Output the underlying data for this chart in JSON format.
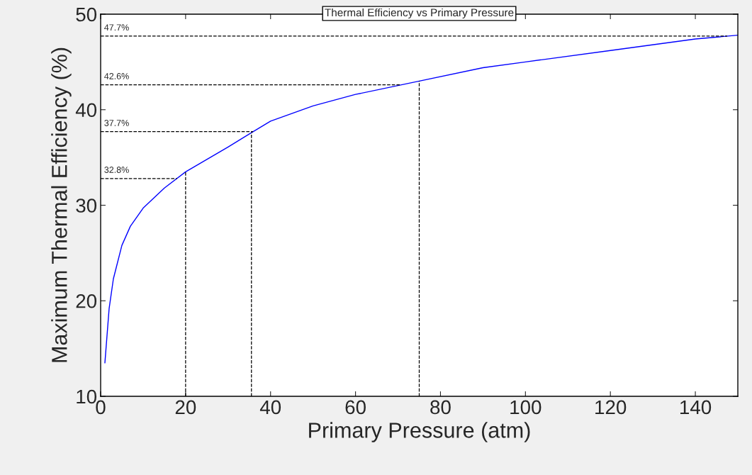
{
  "chart_data": {
    "type": "line",
    "title": "Thermal Efficiency vs Primary Pressure",
    "xlabel": "Primary Pressure (atm)",
    "ylabel": "Maximum Thermal Efficiency (%)",
    "x": [
      1,
      2,
      3,
      5,
      7,
      10,
      15,
      20,
      30,
      35.5,
      40,
      50,
      60,
      75,
      90,
      100,
      120,
      140,
      150
    ],
    "series": [
      {
        "color": "#0000ff",
        "values": [
          13.5,
          19.2,
          22.3,
          25.8,
          27.8,
          29.7,
          31.8,
          33.5,
          36.1,
          37.6,
          38.8,
          40.4,
          41.6,
          43.0,
          44.4,
          45.0,
          46.2,
          47.4,
          47.8
        ]
      }
    ],
    "xlim": [
      0,
      150
    ],
    "xticks": [
      0,
      20,
      40,
      60,
      80,
      100,
      120,
      140
    ],
    "ylim": [
      10,
      50
    ],
    "yticks": [
      10,
      20,
      30,
      40,
      50
    ],
    "grid": false,
    "legend": false,
    "marker": "none",
    "line_style": "solid",
    "ref_lines": [
      {
        "axis": "y",
        "value": 32.8,
        "label": "32.8%",
        "line_style": "dashed",
        "color": "#000000"
      },
      {
        "axis": "y",
        "value": 37.7,
        "label": "37.7%",
        "line_style": "dashed",
        "color": "#000000"
      },
      {
        "axis": "y",
        "value": 42.6,
        "label": "42.6%",
        "line_style": "dashed",
        "color": "#000000"
      },
      {
        "axis": "y",
        "value": 47.7,
        "label": "47.7%",
        "line_style": "dashed",
        "color": "#000000"
      },
      {
        "axis": "x",
        "value": 20,
        "line_style": "dashed",
        "color": "#000000"
      },
      {
        "axis": "x",
        "value": 35.5,
        "line_style": "dashed",
        "color": "#000000"
      },
      {
        "axis": "x",
        "value": 75,
        "line_style": "dashed",
        "color": "#000000"
      }
    ]
  }
}
